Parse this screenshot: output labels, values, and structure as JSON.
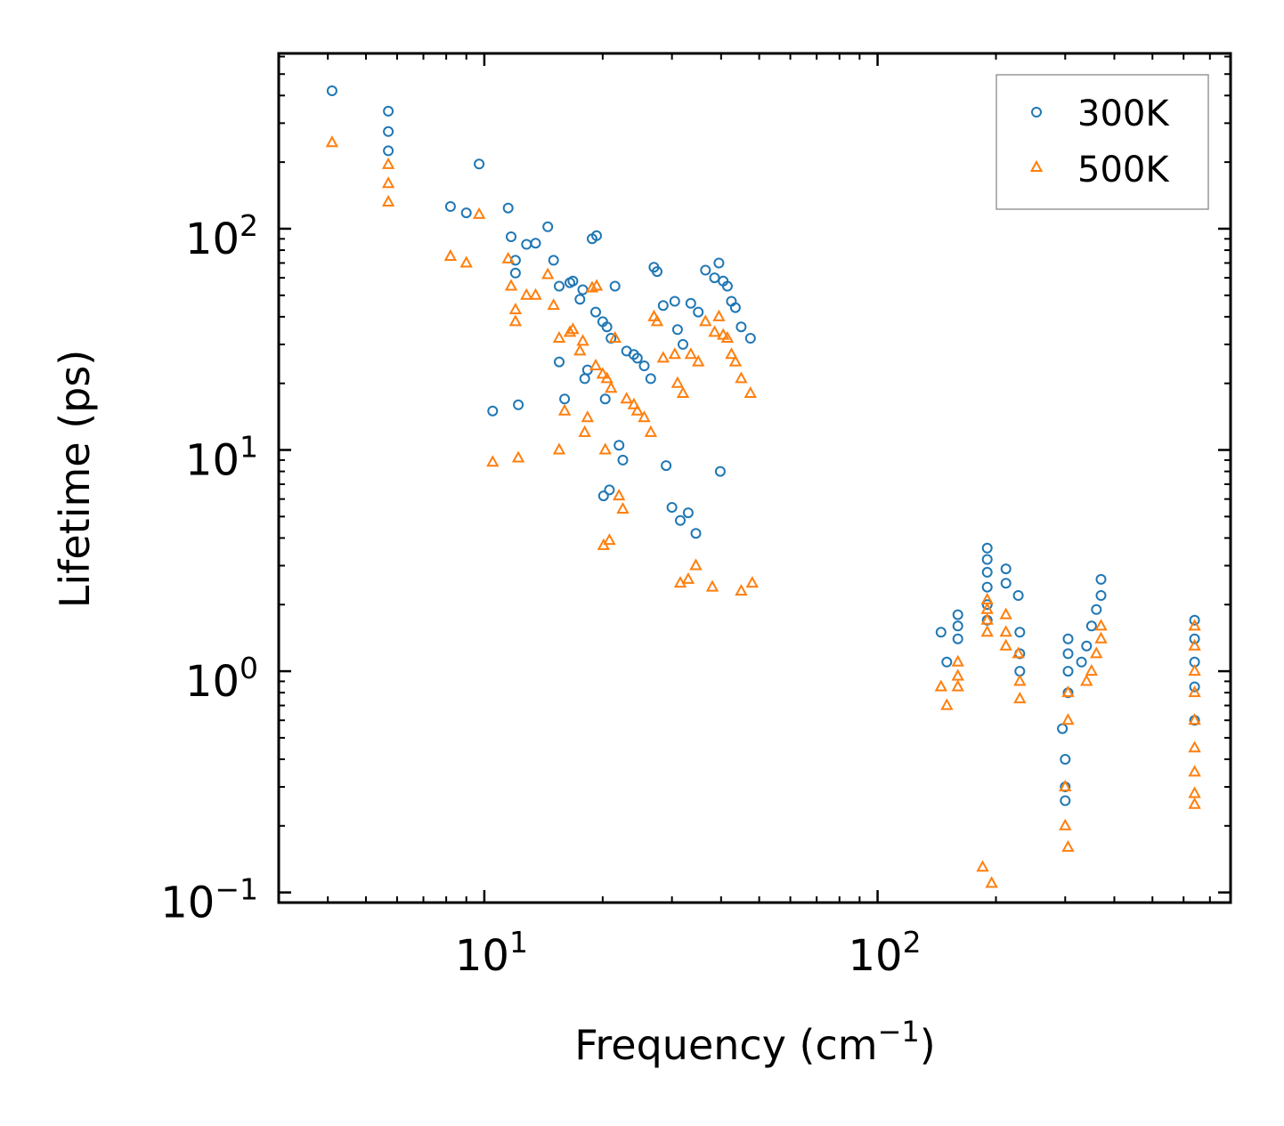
{
  "chart_data": {
    "type": "scatter",
    "title": "",
    "xlabel": {
      "text": "Frequency (cm",
      "sup": "−1",
      "suffix": ")"
    },
    "ylabel": "Lifetime (ps)",
    "xscale": "log",
    "yscale": "log",
    "xlim": [
      3.0,
      790
    ],
    "ylim": [
      0.09,
      620
    ],
    "xticks": [
      {
        "value": 10,
        "base": "10",
        "exp": "1"
      },
      {
        "value": 100,
        "base": "10",
        "exp": "2"
      }
    ],
    "yticks": [
      {
        "value": 0.1,
        "base": "10",
        "exp": "−1"
      },
      {
        "value": 1,
        "base": "10",
        "exp": "0"
      },
      {
        "value": 10,
        "base": "10",
        "exp": "1"
      },
      {
        "value": 100,
        "base": "10",
        "exp": "2"
      }
    ],
    "legend": {
      "position": "top-right"
    },
    "series": [
      {
        "name": "300K",
        "marker": "circle",
        "color": "#1f77b4",
        "points": [
          [
            4.1,
            420
          ],
          [
            5.7,
            340
          ],
          [
            5.7,
            275
          ],
          [
            5.7,
            225
          ],
          [
            8.2,
            126
          ],
          [
            9.0,
            118
          ],
          [
            9.7,
            196
          ],
          [
            10.5,
            15
          ],
          [
            11.5,
            124
          ],
          [
            11.7,
            92
          ],
          [
            12.0,
            72
          ],
          [
            12.0,
            63
          ],
          [
            12.2,
            16
          ],
          [
            12.8,
            85
          ],
          [
            13.5,
            86
          ],
          [
            14.5,
            102
          ],
          [
            15.0,
            72
          ],
          [
            15.5,
            55
          ],
          [
            15.5,
            25
          ],
          [
            16.0,
            17
          ],
          [
            16.5,
            57
          ],
          [
            16.8,
            58
          ],
          [
            17.5,
            48
          ],
          [
            17.8,
            53
          ],
          [
            18.0,
            21
          ],
          [
            18.3,
            23
          ],
          [
            18.8,
            90
          ],
          [
            19.3,
            93
          ],
          [
            19.2,
            42
          ],
          [
            20.0,
            38
          ],
          [
            20.5,
            36
          ],
          [
            21.0,
            32
          ],
          [
            21.5,
            55
          ],
          [
            20.3,
            17
          ],
          [
            20.1,
            6.2
          ],
          [
            20.8,
            6.6
          ],
          [
            22.0,
            10.5
          ],
          [
            22.5,
            9.0
          ],
          [
            23.0,
            28
          ],
          [
            24.0,
            27
          ],
          [
            24.5,
            26
          ],
          [
            25.5,
            24
          ],
          [
            26.5,
            21
          ],
          [
            27.0,
            67
          ],
          [
            27.5,
            64
          ],
          [
            28.5,
            45
          ],
          [
            30.5,
            47
          ],
          [
            31.0,
            35
          ],
          [
            32.0,
            30
          ],
          [
            33.5,
            46
          ],
          [
            35.0,
            42
          ],
          [
            36.5,
            65
          ],
          [
            38.5,
            60
          ],
          [
            39.5,
            70
          ],
          [
            40.5,
            58
          ],
          [
            41.5,
            55
          ],
          [
            42.5,
            47
          ],
          [
            43.5,
            44
          ],
          [
            45.0,
            36
          ],
          [
            47.5,
            32
          ],
          [
            39.8,
            8.0
          ],
          [
            29.0,
            8.5
          ],
          [
            30.0,
            5.5
          ],
          [
            31.5,
            4.8
          ],
          [
            33.0,
            5.2
          ],
          [
            34.5,
            4.2
          ],
          [
            190,
            3.6
          ],
          [
            190,
            3.2
          ],
          [
            190,
            2.8
          ],
          [
            190,
            2.4
          ],
          [
            190,
            2.0
          ],
          [
            190,
            1.7
          ],
          [
            212,
            2.9
          ],
          [
            212,
            2.5
          ],
          [
            228,
            2.2
          ],
          [
            370,
            2.6
          ],
          [
            370,
            2.2
          ],
          [
            360,
            1.9
          ],
          [
            350,
            1.6
          ],
          [
            340,
            1.3
          ],
          [
            330,
            1.1
          ],
          [
            640,
            1.7
          ],
          [
            640,
            1.4
          ],
          [
            640,
            1.1
          ],
          [
            640,
            0.85
          ],
          [
            640,
            0.6
          ],
          [
            160,
            1.8
          ],
          [
            160,
            1.6
          ],
          [
            160,
            1.4
          ],
          [
            145,
            1.5
          ],
          [
            150,
            1.1
          ],
          [
            230,
            1.5
          ],
          [
            230,
            1.2
          ],
          [
            230,
            1.0
          ],
          [
            305,
            1.4
          ],
          [
            305,
            1.2
          ],
          [
            305,
            1.0
          ],
          [
            305,
            0.8
          ],
          [
            295,
            0.55
          ],
          [
            300,
            0.4
          ],
          [
            300,
            0.3
          ],
          [
            300,
            0.26
          ]
        ]
      },
      {
        "name": "500K",
        "marker": "triangle",
        "color": "#ff7f0e",
        "points": [
          [
            4.1,
            245
          ],
          [
            5.7,
            195
          ],
          [
            5.7,
            160
          ],
          [
            5.7,
            132
          ],
          [
            8.2,
            75
          ],
          [
            9.0,
            70
          ],
          [
            9.7,
            116
          ],
          [
            10.5,
            8.8
          ],
          [
            11.5,
            73
          ],
          [
            11.7,
            55
          ],
          [
            12.0,
            43
          ],
          [
            12.0,
            38
          ],
          [
            12.2,
            9.2
          ],
          [
            12.8,
            50
          ],
          [
            13.5,
            50
          ],
          [
            14.5,
            62
          ],
          [
            15.0,
            45
          ],
          [
            15.5,
            32
          ],
          [
            15.5,
            10
          ],
          [
            16.0,
            15
          ],
          [
            16.5,
            34
          ],
          [
            16.8,
            35
          ],
          [
            17.5,
            28
          ],
          [
            17.8,
            31
          ],
          [
            18.0,
            12
          ],
          [
            18.3,
            14
          ],
          [
            18.8,
            54
          ],
          [
            19.3,
            55
          ],
          [
            19.2,
            24
          ],
          [
            20.0,
            22
          ],
          [
            20.5,
            21
          ],
          [
            21.0,
            19
          ],
          [
            21.5,
            32
          ],
          [
            20.3,
            10
          ],
          [
            20.1,
            3.7
          ],
          [
            20.8,
            3.9
          ],
          [
            22.0,
            6.2
          ],
          [
            22.5,
            5.4
          ],
          [
            23.0,
            17
          ],
          [
            24.0,
            16
          ],
          [
            24.5,
            15
          ],
          [
            25.5,
            14
          ],
          [
            26.5,
            12
          ],
          [
            27.0,
            40
          ],
          [
            27.5,
            38
          ],
          [
            28.5,
            26
          ],
          [
            30.5,
            27
          ],
          [
            31.0,
            20
          ],
          [
            32.0,
            18
          ],
          [
            33.5,
            27
          ],
          [
            35.0,
            25
          ],
          [
            36.5,
            38
          ],
          [
            38.5,
            34
          ],
          [
            39.5,
            40
          ],
          [
            40.5,
            33
          ],
          [
            41.5,
            32
          ],
          [
            42.5,
            27
          ],
          [
            43.5,
            25
          ],
          [
            45.0,
            21
          ],
          [
            47.5,
            18
          ],
          [
            31.5,
            2.5
          ],
          [
            33.0,
            2.6
          ],
          [
            34.5,
            3.0
          ],
          [
            38.0,
            2.4
          ],
          [
            45.0,
            2.3
          ],
          [
            48.0,
            2.5
          ],
          [
            190,
            2.1
          ],
          [
            190,
            1.9
          ],
          [
            190,
            1.7
          ],
          [
            190,
            1.5
          ],
          [
            212,
            1.8
          ],
          [
            212,
            1.5
          ],
          [
            212,
            1.3
          ],
          [
            228,
            1.2
          ],
          [
            370,
            1.6
          ],
          [
            370,
            1.4
          ],
          [
            360,
            1.2
          ],
          [
            350,
            1.0
          ],
          [
            340,
            0.9
          ],
          [
            640,
            1.6
          ],
          [
            640,
            1.3
          ],
          [
            640,
            1.0
          ],
          [
            640,
            0.8
          ],
          [
            640,
            0.6
          ],
          [
            640,
            0.45
          ],
          [
            640,
            0.35
          ],
          [
            640,
            0.28
          ],
          [
            640,
            0.25
          ],
          [
            160,
            1.1
          ],
          [
            160,
            0.95
          ],
          [
            160,
            0.85
          ],
          [
            145,
            0.85
          ],
          [
            150,
            0.7
          ],
          [
            230,
            0.9
          ],
          [
            230,
            0.75
          ],
          [
            305,
            0.8
          ],
          [
            305,
            0.6
          ],
          [
            300,
            0.3
          ],
          [
            300,
            0.2
          ],
          [
            305,
            0.16
          ],
          [
            195,
            0.11
          ],
          [
            185,
            0.13
          ]
        ]
      }
    ]
  }
}
